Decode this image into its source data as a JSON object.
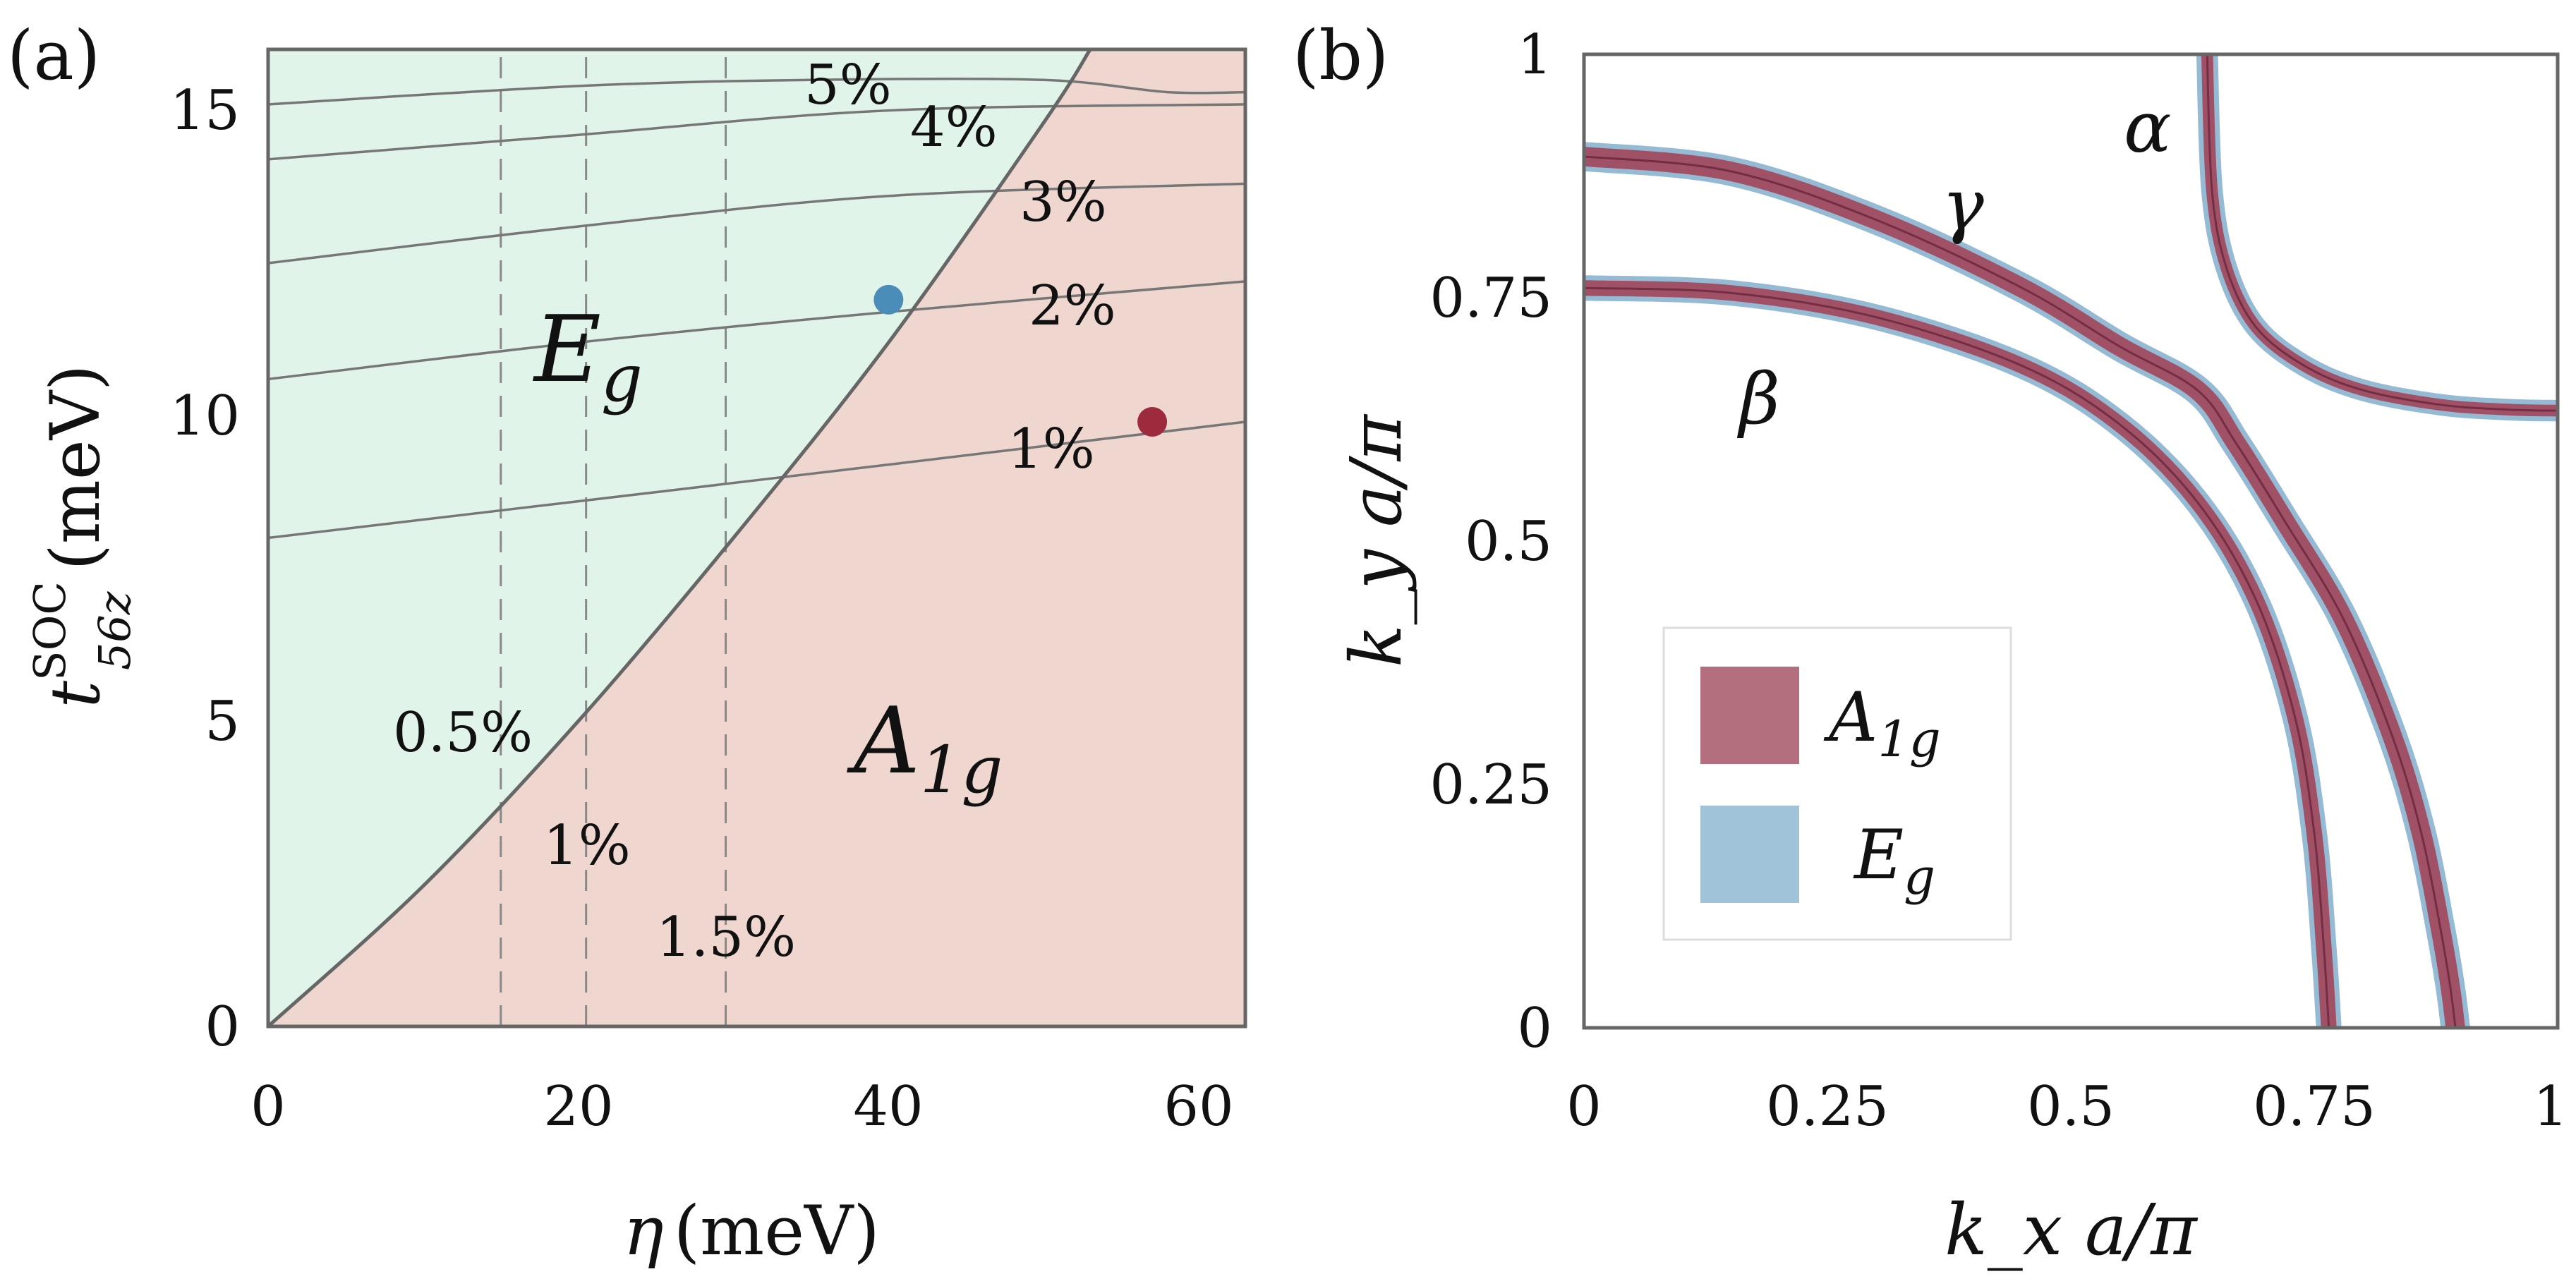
{
  "chart_data": [
    {
      "type": "phase-diagram",
      "panel_label": "(a)",
      "xlabel": "η (meV)",
      "xlabel_symbol": "η",
      "xlabel_unit": "(meV)",
      "ylabel_symbol": "t",
      "ylabel_superscript": "SOC",
      "ylabel_subscript": "56z",
      "ylabel_unit": "(meV)",
      "xlim": [
        0,
        63
      ],
      "ylim": [
        0,
        16
      ],
      "xticks": [
        "0",
        "20",
        "40",
        "60"
      ],
      "xtick_values": [
        0,
        20,
        40,
        60
      ],
      "yticks": [
        "0",
        "5",
        "10",
        "15"
      ],
      "ytick_values": [
        0,
        5,
        10,
        15
      ],
      "regions": [
        {
          "name": "Eg",
          "label": "E",
          "sub": "g",
          "color": "#e1f4ea"
        },
        {
          "name": "A1g",
          "label": "A",
          "sub": "1g",
          "color": "#efd6cf"
        }
      ],
      "boundary": {
        "x": [
          0,
          10,
          20,
          30,
          40,
          50,
          53
        ],
        "y": [
          0,
          2.3,
          5.0,
          8.0,
          11.2,
          14.8,
          16
        ]
      },
      "dashed_lines_x": [
        15,
        20.5,
        29.5
      ],
      "dashed_labels": [
        "0.5%",
        "1%",
        "1.5%"
      ],
      "contours": [
        {
          "label": "1%",
          "x": [
            0,
            20,
            40,
            63
          ],
          "y": [
            8.0,
            8.6,
            9.2,
            9.9
          ]
        },
        {
          "label": "2%",
          "x": [
            0,
            20,
            40,
            63
          ],
          "y": [
            10.6,
            11.2,
            11.7,
            12.2
          ]
        },
        {
          "label": "3%",
          "x": [
            0,
            20,
            40,
            63
          ],
          "y": [
            12.5,
            13.1,
            13.6,
            13.8
          ]
        },
        {
          "label": "4%",
          "x": [
            0,
            20,
            40,
            63
          ],
          "y": [
            14.2,
            14.6,
            15.0,
            15.1
          ]
        },
        {
          "label": "5%",
          "x": [
            0,
            20,
            35,
            50,
            58,
            63
          ],
          "y": [
            15.1,
            15.4,
            15.5,
            15.5,
            15.3,
            15.3
          ]
        }
      ],
      "points": [
        {
          "name": "Eg point",
          "x": 40,
          "y": 11.9,
          "color": "#4a8db8"
        },
        {
          "name": "A1g point",
          "x": 57,
          "y": 9.9,
          "color": "#9e2b3d"
        }
      ]
    },
    {
      "type": "line",
      "panel_label": "(b)",
      "xlabel_symbol": "k_x a/π",
      "ylabel_symbol": "k_y a/π",
      "xlim": [
        0,
        1
      ],
      "ylim": [
        0,
        1
      ],
      "xticks": [
        "0",
        "0.25",
        "0.5",
        "0.75",
        "1"
      ],
      "xtick_values": [
        0,
        0.25,
        0.5,
        0.75,
        1
      ],
      "yticks": [
        "0",
        "0.25",
        "0.5",
        "0.75",
        "1"
      ],
      "ytick_values": [
        0,
        0.25,
        0.5,
        0.75,
        1
      ],
      "band_labels": [
        {
          "text": "α",
          "x": 0.57,
          "y": 0.92
        },
        {
          "text": "β",
          "x": 0.19,
          "y": 0.64
        },
        {
          "text": "γ",
          "x": 0.4,
          "y": 0.84
        }
      ],
      "legend": [
        {
          "label": "A",
          "sub": "1g",
          "color": "#a14b5f",
          "opacity": 0.8
        },
        {
          "label": "E",
          "sub": "g",
          "color": "#8ab4cf",
          "opacity": 0.8
        }
      ],
      "series": [
        {
          "name": "alpha",
          "x": [
            0.64,
            0.645,
            0.66,
            0.69,
            0.74,
            0.8,
            0.88,
            0.95,
            1.0
          ],
          "y": [
            1.0,
            0.86,
            0.78,
            0.72,
            0.68,
            0.655,
            0.64,
            0.635,
            0.634
          ],
          "width_data": 0.012
        },
        {
          "name": "beta",
          "x": [
            0.0,
            0.15,
            0.3,
            0.45,
            0.55,
            0.63,
            0.69,
            0.73,
            0.75,
            0.76,
            0.765
          ],
          "y": [
            0.76,
            0.755,
            0.73,
            0.68,
            0.62,
            0.54,
            0.44,
            0.32,
            0.2,
            0.08,
            0.0
          ],
          "width_data": 0.016
        },
        {
          "name": "gamma",
          "x": [
            0.0,
            0.15,
            0.3,
            0.45,
            0.55,
            0.63,
            0.67,
            0.72,
            0.78,
            0.83,
            0.86,
            0.88,
            0.89,
            0.895
          ],
          "y": [
            0.895,
            0.88,
            0.83,
            0.76,
            0.7,
            0.655,
            0.6,
            0.52,
            0.42,
            0.3,
            0.2,
            0.1,
            0.04,
            0.0
          ],
          "width_data": 0.02
        }
      ]
    }
  ]
}
